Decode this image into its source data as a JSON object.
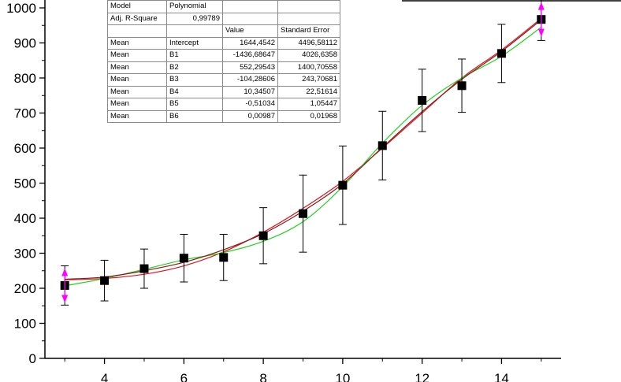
{
  "chart_data": {
    "type": "scatter",
    "title": "",
    "xlabel": "",
    "ylabel": "",
    "xlim": [
      2.5,
      15.5
    ],
    "ylim": [
      0,
      1000
    ],
    "x_ticks": [
      4,
      6,
      8,
      10,
      12,
      14
    ],
    "y_ticks": [
      0,
      100,
      200,
      300,
      400,
      500,
      600,
      700,
      800,
      900,
      1000
    ],
    "series": [
      {
        "kind": "points",
        "marker": "square",
        "color": "#000000",
        "x": [
          3,
          4,
          5,
          6,
          7,
          8,
          9,
          10,
          11,
          12,
          13,
          14,
          15
        ],
        "y": [
          208,
          222,
          256,
          286,
          288,
          350,
          413,
          494,
          607,
          736,
          778,
          870,
          967
        ],
        "yerr": [
          56,
          58,
          56,
          68,
          66,
          80,
          110,
          112,
          98,
          89,
          76,
          83,
          60
        ]
      },
      {
        "kind": "fit",
        "color": "#e0141e",
        "x": [
          3,
          4,
          5,
          6,
          7,
          8,
          9,
          10,
          11,
          12,
          13,
          14,
          15
        ],
        "y": [
          224,
          228,
          240,
          264,
          304,
          360,
          428,
          505,
          600,
          700,
          800,
          880,
          970
        ]
      },
      {
        "kind": "fit",
        "color": "#1fd41f",
        "x": [
          3,
          4,
          5,
          6,
          7,
          8,
          9,
          10,
          11,
          12,
          13,
          14,
          15
        ],
        "y": [
          207,
          228,
          254,
          281,
          302,
          334,
          390,
          490,
          614,
          722,
          800,
          862,
          945
        ]
      },
      {
        "kind": "fit",
        "color": "#8a1a1a",
        "x": [
          3,
          4,
          5,
          6,
          7,
          8,
          9,
          10,
          11,
          12,
          13,
          14,
          15
        ],
        "y": [
          226,
          232,
          250,
          274,
          310,
          356,
          420,
          498,
          602,
          704,
          796,
          876,
          966
        ]
      }
    ],
    "markers": [
      {
        "x": 3,
        "y": 208,
        "color": "#ff00ff"
      },
      {
        "x": 15,
        "y": 967,
        "color": "#ff00ff"
      }
    ]
  },
  "table": {
    "rows": [
      [
        "Model",
        "Polynomial",
        "",
        ""
      ],
      [
        "Adj. R-Square",
        "0,99789",
        "",
        ""
      ],
      [
        "",
        "",
        "Value",
        "Standard Error"
      ],
      [
        "Mean",
        "Intercept",
        "1644,4542",
        "4496,58112"
      ],
      [
        "Mean",
        "B1",
        "-1436,68647",
        "4026,6358"
      ],
      [
        "Mean",
        "B2",
        "552,29543",
        "1400,70558"
      ],
      [
        "Mean",
        "B3",
        "-104,28606",
        "243,70681"
      ],
      [
        "Mean",
        "B4",
        "10,34507",
        "22,51614"
      ],
      [
        "Mean",
        "B5",
        "-0,51034",
        "1,05447"
      ],
      [
        "Mean",
        "B6",
        "0,00987",
        "0,01968"
      ]
    ]
  }
}
